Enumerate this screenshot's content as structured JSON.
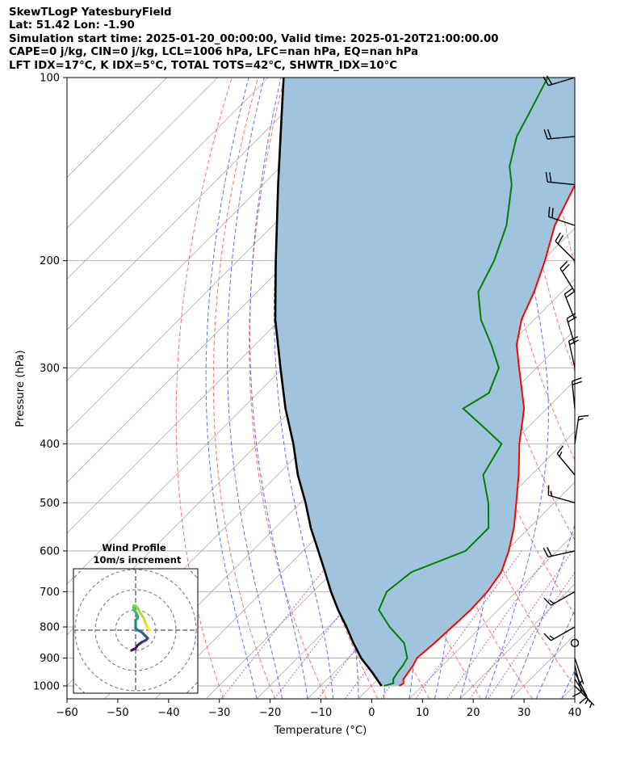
{
  "header": {
    "line1": "SkewTLogP YatesburyField",
    "line2": "Lat: 51.42   Lon: -1.90",
    "line3": "Simulation start time: 2025-01-20_00:00:00, Valid time: 2025-01-20T21:00:00.00",
    "line4": "CAPE=0 j/kg, CIN=0 j/kg, LCL=1006 hPa, LFC=nan hPa, EQ=nan hPa",
    "line5": "LFT IDX=17$^\\circ$C, K IDX=5$^\\circ$C, TOTAL TOTS=42$^\\circ$C, SHWTR_IDX=10$^\\circ$C"
  },
  "header_display": {
    "line5": "LFT IDX=17°C, K IDX=5°C, TOTAL TOTS=42°C, SHWTR_IDX=10°C"
  },
  "chart_data": [
    {
      "type": "line",
      "subtype": "skew-T log-P",
      "xlabel": "Temperature ($^\\circ$C)",
      "xlabel_display": "Temperature (°C)",
      "ylabel": "Pressure (hPa)",
      "xlim": [
        -60,
        40
      ],
      "ylim": [
        1050,
        100
      ],
      "y_scale": "log",
      "x_ticks": [
        "−60",
        "−50",
        "−40",
        "−30",
        "−20",
        "−10",
        "0",
        "10",
        "20",
        "30",
        "40"
      ],
      "y_ticks": [
        100,
        200,
        300,
        400,
        500,
        600,
        700,
        800,
        900,
        1000
      ],
      "grid": true,
      "colors": {
        "temperature": "#ff0000",
        "dewpoint": "#008000",
        "parcel": "#000000",
        "cin_area": "#a0c4de",
        "dry_adiabats": "#ff6b6b",
        "moist_adiabats": "#5b6bff",
        "mixing_ratio": "#b54acc",
        "isotherms": "#aaaaaa"
      },
      "series": [
        {
          "role": "temperature",
          "pressure": [
            1000,
            990,
            975,
            950,
            925,
            900,
            850,
            800,
            750,
            700,
            650,
            600,
            550,
            500,
            450,
            400,
            350,
            300,
            275,
            250,
            225,
            200,
            175,
            150,
            140,
            125,
            115,
            100
          ],
          "temperature": [
            5.5,
            5.8,
            5.0,
            4.6,
            4.2,
            3.5,
            4.0,
            4.3,
            4.6,
            4.3,
            3.2,
            0.5,
            -3.0,
            -7.5,
            -12.5,
            -18.5,
            -24.5,
            -33.5,
            -38.5,
            -42.5,
            -45.5,
            -49.5,
            -54.5,
            -58.5,
            -59.5,
            -60.0,
            -60.5,
            -61.0
          ]
        },
        {
          "role": "dewpoint",
          "pressure": [
            1000,
            990,
            975,
            950,
            925,
            900,
            850,
            800,
            750,
            700,
            650,
            600,
            550,
            500,
            450,
            400,
            380,
            350,
            330,
            300,
            275,
            250,
            225,
            200,
            175,
            150,
            140,
            125,
            115,
            100
          ],
          "temperature": [
            2.5,
            3.8,
            3.0,
            2.5,
            2.2,
            1.6,
            -2.0,
            -8.0,
            -13.5,
            -15.5,
            -14.5,
            -8.0,
            -8.0,
            -13.0,
            -19.5,
            -22.0,
            -27.5,
            -36.5,
            -34.5,
            -37.5,
            -43.5,
            -50.5,
            -56.5,
            -59.5,
            -64.0,
            -71.0,
            -75.0,
            -79.5,
            -81.5,
            -85.0
          ]
        },
        {
          "role": "parcel",
          "pressure": [
            1000,
            950,
            900,
            850,
            800,
            750,
            700,
            650,
            600,
            550,
            500,
            450,
            400,
            350,
            300,
            250,
            200,
            150,
            125,
            100
          ],
          "temperature": [
            2.0,
            -2.5,
            -7.5,
            -12.0,
            -16.5,
            -21.5,
            -26.5,
            -31.5,
            -37.0,
            -43.0,
            -49.0,
            -56.0,
            -63.0,
            -71.5,
            -80.5,
            -91.0,
            -102.5,
            -117.0,
            -126.0,
            -137.0
          ]
        }
      ]
    },
    {
      "type": "scatter",
      "subtype": "wind barbs",
      "units": "m/s",
      "samples": [
        {
          "pressure": 100,
          "u": 10,
          "v": 3
        },
        {
          "pressure": 125,
          "u": 11,
          "v": 1
        },
        {
          "pressure": 150,
          "u": 10,
          "v": -1
        },
        {
          "pressure": 175,
          "u": 9,
          "v": -3
        },
        {
          "pressure": 200,
          "u": 7,
          "v": -7
        },
        {
          "pressure": 225,
          "u": 5,
          "v": -8
        },
        {
          "pressure": 250,
          "u": 4,
          "v": -10
        },
        {
          "pressure": 275,
          "u": 3,
          "v": -10
        },
        {
          "pressure": 300,
          "u": 2,
          "v": -9
        },
        {
          "pressure": 350,
          "u": 1,
          "v": -10
        },
        {
          "pressure": 400,
          "u": -1,
          "v": -7
        },
        {
          "pressure": 450,
          "u": 5,
          "v": -6
        },
        {
          "pressure": 500,
          "u": 7,
          "v": -2
        },
        {
          "pressure": 600,
          "u": 9,
          "v": 2
        },
        {
          "pressure": 700,
          "u": 7,
          "v": 4
        },
        {
          "pressure": 800,
          "u": 7,
          "v": 4
        },
        {
          "pressure": 850,
          "u": 0,
          "v": 0
        },
        {
          "pressure": 900,
          "u": -1,
          "v": 3
        },
        {
          "pressure": 925,
          "u": -1,
          "v": 4
        },
        {
          "pressure": 950,
          "u": -2,
          "v": 4
        },
        {
          "pressure": 975,
          "u": -2,
          "v": 3
        },
        {
          "pressure": 1000,
          "u": -2,
          "v": 2
        }
      ]
    },
    {
      "type": "line",
      "subtype": "hodograph",
      "title": "Wind Profile\n10m/s increment",
      "title_lines": [
        "Wind Profile",
        "10m/s increment"
      ],
      "ring_increment": 10,
      "colormap": [
        "#440154",
        "#3b528b",
        "#21918c",
        "#5ec962",
        "#fde725"
      ],
      "u": [
        -2,
        -1,
        0,
        1,
        3,
        5,
        6,
        5,
        4,
        3,
        1,
        0,
        0,
        0,
        0,
        1,
        1,
        0,
        -1,
        -1,
        -1,
        0,
        1,
        2,
        4,
        5,
        6,
        7
      ],
      "v": [
        -10,
        -9.5,
        -9,
        -7.5,
        -6,
        -5,
        -4,
        -3,
        -2,
        -1,
        0,
        1,
        2,
        4,
        5,
        6,
        7,
        9,
        10,
        11,
        12,
        12,
        11,
        9,
        6,
        3,
        1,
        0
      ]
    }
  ]
}
